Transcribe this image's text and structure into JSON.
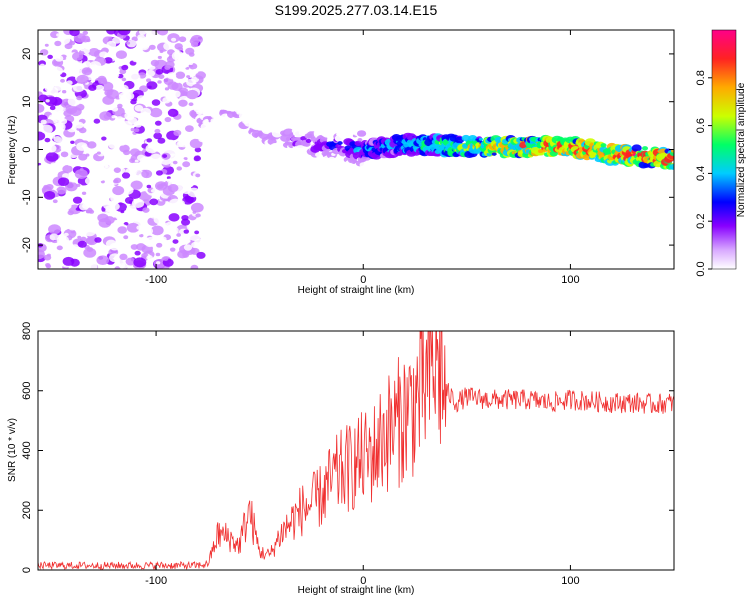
{
  "title": "S199.2025.277.03.14.E15",
  "colors": {
    "snr_line": "#f03030",
    "colormap": [
      "#ffffff",
      "#cc88ff",
      "#8800ff",
      "#0000ff",
      "#00ccff",
      "#00ff66",
      "#ccff00",
      "#ffaa00",
      "#ff2222",
      "#ff0088"
    ]
  },
  "chart_data": [
    {
      "type": "heatmap",
      "xlabel": "Height of straight line (km)",
      "ylabel": "Frequency (Hz)",
      "xlim": [
        -157,
        150
      ],
      "ylim": [
        -25,
        25
      ],
      "xticks": [
        -100,
        0,
        100
      ],
      "yticks": [
        -20,
        -10,
        0,
        10,
        20
      ],
      "colorbar": {
        "label": "Normalized spectral amplitude",
        "range": [
          0.0,
          1.0
        ],
        "ticks": [
          0.0,
          0.2,
          0.4,
          0.6,
          0.8
        ]
      },
      "ridge": {
        "description_points": [
          {
            "x": -80,
            "y": 5
          },
          {
            "x": -65,
            "y": 8
          },
          {
            "x": -50,
            "y": 3
          },
          {
            "x": -20,
            "y": 1
          },
          {
            "x": 0,
            "y": 0
          },
          {
            "x": 20,
            "y": 1
          },
          {
            "x": 40,
            "y": 0.8
          },
          {
            "x": 60,
            "y": 0.5
          },
          {
            "x": 100,
            "y": 0.5
          },
          {
            "x": 120,
            "y": -1
          },
          {
            "x": 150,
            "y": -2
          }
        ],
        "noise_region_x": [
          -157,
          -78
        ]
      }
    },
    {
      "type": "line",
      "xlabel": "Height of straight line (km)",
      "ylabel": "SNR (10 * v/v)",
      "xlim": [
        -157,
        150
      ],
      "ylim": [
        0,
        800
      ],
      "xticks": [
        -100,
        0,
        100
      ],
      "yticks": [
        0,
        200,
        400,
        600,
        800
      ],
      "series": [
        {
          "x": [
            -157,
            -140,
            -120,
            -100,
            -90,
            -80,
            -75,
            -70,
            -65,
            -60,
            -55,
            -50,
            -45,
            -40,
            -35,
            -30,
            -25,
            -20,
            -15,
            -10,
            -5,
            0,
            5,
            10,
            15,
            20,
            25,
            30,
            35,
            40,
            45,
            50,
            60,
            70,
            80,
            90,
            100,
            110,
            120,
            130,
            140,
            150
          ],
          "values": [
            15,
            15,
            15,
            15,
            15,
            15,
            20,
            120,
            110,
            80,
            200,
            60,
            50,
            120,
            160,
            200,
            220,
            250,
            300,
            330,
            350,
            370,
            390,
            450,
            480,
            520,
            560,
            620,
            700,
            600,
            560,
            580,
            570,
            570,
            570,
            560,
            570,
            565,
            560,
            560,
            555,
            560
          ]
        }
      ]
    }
  ]
}
